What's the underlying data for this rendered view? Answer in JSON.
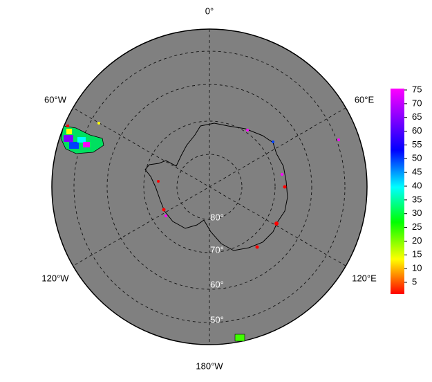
{
  "map": {
    "lon_labels": [
      "0°",
      "60°E",
      "120°E",
      "180°W",
      "120°W",
      "60°W"
    ],
    "lat_labels": [
      "80°",
      "70°",
      "60°",
      "50°"
    ],
    "colorbar_ticks": [
      5,
      10,
      15,
      20,
      25,
      30,
      35,
      40,
      45,
      50,
      55,
      60,
      65,
      70,
      75
    ]
  }
}
